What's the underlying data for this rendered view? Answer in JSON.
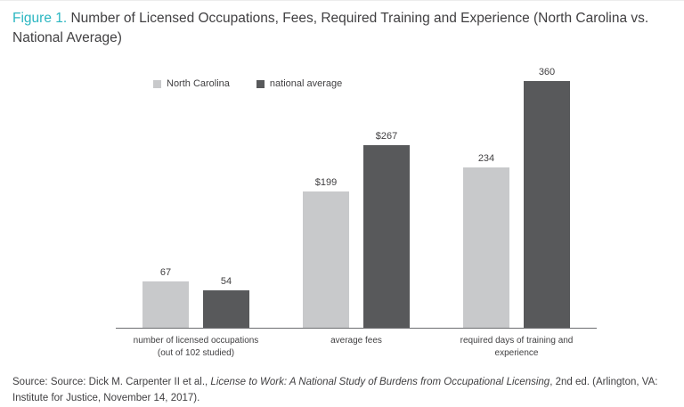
{
  "title": {
    "prefix": "Figure 1.",
    "text": " Number of Licensed Occupations, Fees, Required Training and Experience (North Carolina vs. National Average)"
  },
  "chart_data": {
    "type": "bar",
    "categories": [
      "number of licensed occupations (out of 102 studied)",
      "average fees",
      "required days of training and experience"
    ],
    "series": [
      {
        "name": "North Carolina",
        "color": "#c8c9cb",
        "values": [
          67,
          199,
          234
        ],
        "labels": [
          "67",
          "$199",
          "234"
        ]
      },
      {
        "name": "national average",
        "color": "#58595b",
        "values": [
          54,
          267,
          360
        ],
        "labels": [
          "54",
          "$267",
          "360"
        ]
      }
    ],
    "ylim": [
      0,
      360
    ],
    "grid": false,
    "legend_position": "top-left",
    "title": "Number of Licensed Occupations, Fees, Required Training and Experience (North Carolina vs. National Average)",
    "xlabel": "",
    "ylabel": ""
  },
  "source": {
    "pre": "Source: Source: Dick M. Carpenter II et al., ",
    "italic": "License to Work: A National Study of Burdens from Occupational Licensing",
    "post": ", 2nd ed. (Arlington, VA: Institute for Justice, November 14, 2017)."
  }
}
